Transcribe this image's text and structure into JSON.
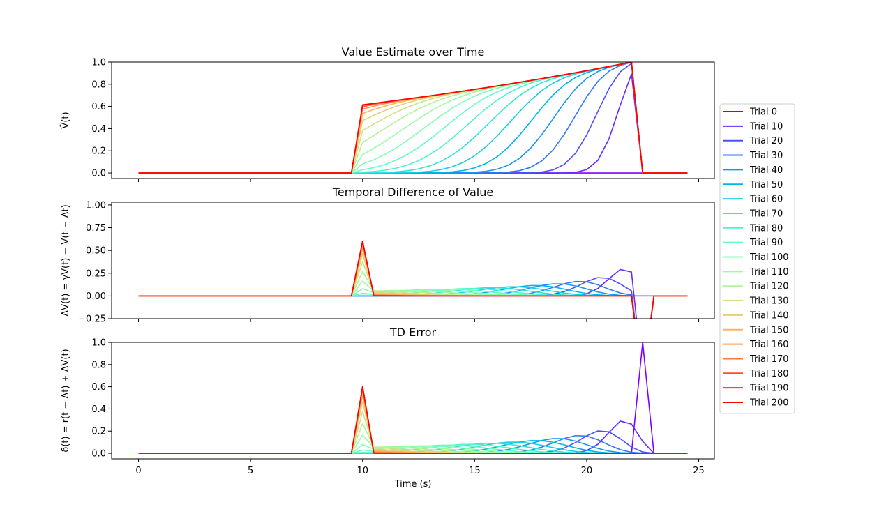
{
  "chart_data": [
    {
      "type": "line",
      "title": "Value Estimate over Time",
      "xlabel": "",
      "ylabel": "V̂(t)",
      "xlim": [
        -1.2,
        25.7
      ],
      "ylim": [
        -0.05,
        1.0
      ],
      "xticks": [
        0,
        5,
        10,
        15,
        20,
        25
      ],
      "xtick_labels": [
        "",
        "",
        "",
        "",
        "",
        ""
      ],
      "yticks": [
        0.0,
        0.2,
        0.4,
        0.6,
        0.8,
        1.0
      ],
      "ytick_labels": [
        "0.0",
        "0.2",
        "0.4",
        "0.6",
        "0.8",
        "1.0"
      ]
    },
    {
      "type": "line",
      "title": "Temporal Difference of Value",
      "xlabel": "",
      "ylabel": "ΔV(t) = γV(t) − V(t − Δt)",
      "xlim": [
        -1.2,
        25.7
      ],
      "ylim": [
        -0.25,
        1.03
      ],
      "xticks": [
        0,
        5,
        10,
        15,
        20,
        25
      ],
      "xtick_labels": [
        "",
        "",
        "",
        "",
        "",
        ""
      ],
      "yticks": [
        -0.25,
        0.0,
        0.25,
        0.5,
        0.75,
        1.0
      ],
      "ytick_labels": [
        "−0.25",
        "0.00",
        "0.25",
        "0.50",
        "0.75",
        "1.00"
      ]
    },
    {
      "type": "line",
      "title": "TD Error",
      "xlabel": "Time (s)",
      "ylabel": "δ(t) = r(t − Δt) + ΔV(t)",
      "xlim": [
        -1.2,
        25.7
      ],
      "ylim": [
        -0.05,
        1.0
      ],
      "xticks": [
        0,
        5,
        10,
        15,
        20,
        25
      ],
      "xtick_labels": [
        "0",
        "5",
        "10",
        "15",
        "20",
        "25"
      ],
      "yticks": [
        0.0,
        0.2,
        0.4,
        0.6,
        0.8,
        1.0
      ],
      "ytick_labels": [
        "0.0",
        "0.2",
        "0.4",
        "0.6",
        "0.8",
        "1.0"
      ]
    }
  ],
  "legend": {
    "position": "right",
    "entries": [
      {
        "label": "Trial 0",
        "color": "#8000ff"
      },
      {
        "label": "Trial 10",
        "color": "#6629fe"
      },
      {
        "label": "Trial 20",
        "color": "#4c50fc"
      },
      {
        "label": "Trial 30",
        "color": "#3176f8"
      },
      {
        "label": "Trial 40",
        "color": "#1996f3"
      },
      {
        "label": "Trial 50",
        "color": "#00b5eb"
      },
      {
        "label": "Trial 60",
        "color": "#19cfe2"
      },
      {
        "label": "Trial 70",
        "color": "#31e3d8"
      },
      {
        "label": "Trial 80",
        "color": "#4df3ce"
      },
      {
        "label": "Trial 90",
        "color": "#66fcc2"
      },
      {
        "label": "Trial 100",
        "color": "#80ffb4"
      },
      {
        "label": "Trial 110",
        "color": "#99fca5"
      },
      {
        "label": "Trial 120",
        "color": "#b3f396"
      },
      {
        "label": "Trial 130",
        "color": "#cce385"
      },
      {
        "label": "Trial 140",
        "color": "#e6cf73"
      },
      {
        "label": "Trial 150",
        "color": "#ffb360"
      },
      {
        "label": "Trial 160",
        "color": "#ff964e"
      },
      {
        "label": "Trial 170",
        "color": "#ff763b"
      },
      {
        "label": "Trial 180",
        "color": "#ff5028"
      },
      {
        "label": "Trial 190",
        "color": "#ff2914"
      },
      {
        "label": "Trial 200",
        "color": "#ff0000"
      }
    ]
  }
}
